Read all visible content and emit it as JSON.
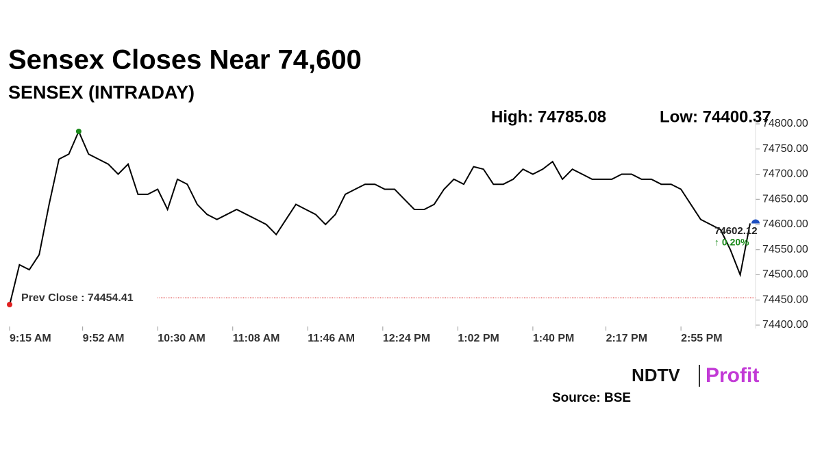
{
  "chart_data": {
    "type": "line",
    "title": "Sensex Closes Near 74,600",
    "subtitle": "SENSEX (INTRADAY)",
    "high": {
      "value": 74785.08,
      "label": "High: 74785.08"
    },
    "low": {
      "value": 74400.37,
      "label": "Low: 74400.37"
    },
    "prev_close": {
      "value": 74454.41,
      "label": "Prev Close : 74454.41"
    },
    "last": 74602.12,
    "change": {
      "value": 0.2,
      "label": "↑ 0.20%"
    },
    "color": "#000000",
    "x": [
      555,
      560,
      565,
      570,
      575,
      580,
      585,
      590,
      595,
      600,
      605,
      610,
      615,
      620,
      625,
      630,
      635,
      640,
      645,
      650,
      655,
      660,
      665,
      670,
      675,
      680,
      685,
      690,
      695,
      700,
      705,
      710,
      715,
      720,
      725,
      730,
      735,
      740,
      745,
      750,
      755,
      760,
      765,
      770,
      775,
      780,
      785,
      790,
      795,
      800,
      805,
      810,
      815,
      820,
      825,
      830,
      835,
      840,
      845,
      850,
      855,
      860,
      865,
      870,
      875,
      880,
      885,
      890,
      895,
      900,
      905,
      910,
      915,
      920,
      925,
      930
    ],
    "values": [
      74440,
      74520,
      74510,
      74540,
      74640,
      74730,
      74740,
      74785.08,
      74740,
      74730,
      74720,
      74700,
      74720,
      74660,
      74660,
      74670,
      74630,
      74690,
      74680,
      74640,
      74620,
      74610,
      74620,
      74630,
      74620,
      74610,
      74600,
      74580,
      74610,
      74640,
      74630,
      74620,
      74600,
      74620,
      74660,
      74670,
      74680,
      74680,
      74670,
      74670,
      74650,
      74630,
      74630,
      74640,
      74670,
      74690,
      74680,
      74715,
      74710,
      74680,
      74680,
      74690,
      74710,
      74700,
      74710,
      74725,
      74690,
      74710,
      74700,
      74690,
      74690,
      74690,
      74700,
      74700,
      74690,
      74690,
      74680,
      74680,
      74670,
      74640,
      74610,
      74600,
      74590,
      74550,
      74500,
      74602.12
    ],
    "xlim": [
      555,
      930
    ],
    "xticks": [
      {
        "value": 555,
        "label": "9:15 AM"
      },
      {
        "value": 592,
        "label": "9:52 AM"
      },
      {
        "value": 630,
        "label": "10:30 AM"
      },
      {
        "value": 668,
        "label": "11:08 AM"
      },
      {
        "value": 706,
        "label": "11:46 AM"
      },
      {
        "value": 744,
        "label": "12:24 PM"
      },
      {
        "value": 782,
        "label": "1:02 PM"
      },
      {
        "value": 820,
        "label": "1:40 PM"
      },
      {
        "value": 857,
        "label": "2:17 PM"
      },
      {
        "value": 895,
        "label": "2:55 PM"
      }
    ],
    "ylim": [
      74400,
      74800
    ],
    "yticks": [
      {
        "value": 74400,
        "label": "74400.00"
      },
      {
        "value": 74450,
        "label": "74450.00"
      },
      {
        "value": 74500,
        "label": "74500.00"
      },
      {
        "value": 74550,
        "label": "74550.00"
      },
      {
        "value": 74600,
        "label": "74600.00"
      },
      {
        "value": 74650,
        "label": "74650.00"
      },
      {
        "value": 74700,
        "label": "74700.00"
      },
      {
        "value": 74750,
        "label": "74750.00"
      },
      {
        "value": 74800,
        "label": "74800.00"
      }
    ],
    "brand": {
      "left": "NDTV",
      "right": "Profit"
    },
    "source": "Source: BSE"
  }
}
